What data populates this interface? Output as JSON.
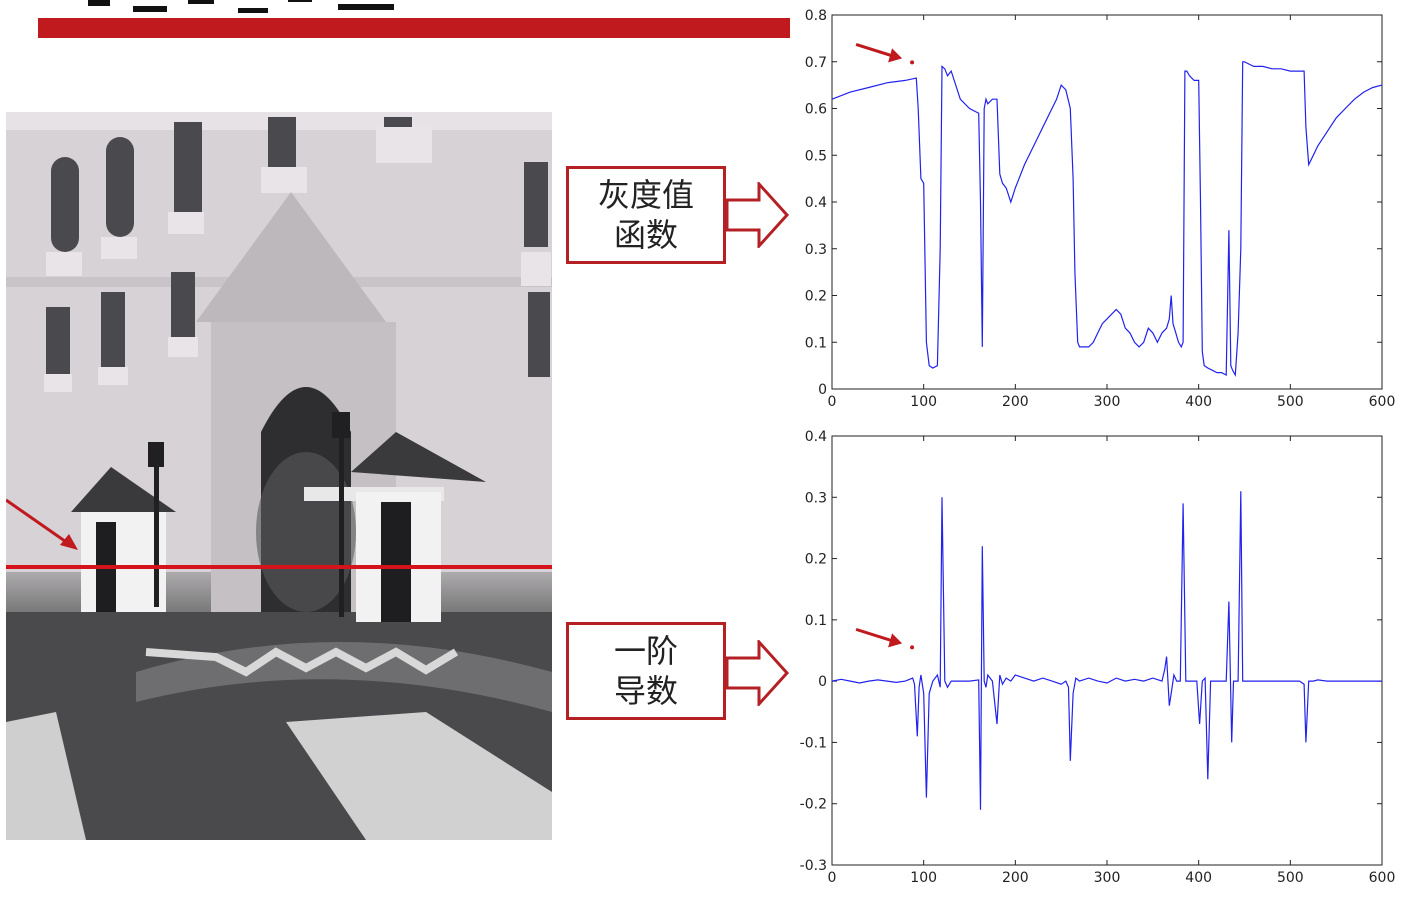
{
  "labels": {
    "gray_box": [
      "灰度值",
      "函数"
    ],
    "deriv_box": [
      "一阶",
      "导数"
    ]
  },
  "colors": {
    "accent": "#c0191e",
    "series": "#2222ee"
  },
  "chart_data": [
    {
      "type": "line",
      "title": "",
      "xlabel": "",
      "ylabel": "",
      "xlim": [
        0,
        600
      ],
      "ylim": [
        0,
        0.8
      ],
      "xticks": [
        "0",
        "100",
        "200",
        "300",
        "400",
        "500",
        "600"
      ],
      "yticks": [
        "0",
        "0.1",
        "0.2",
        "0.3",
        "0.4",
        "0.5",
        "0.6",
        "0.7",
        "0.8"
      ],
      "series": [
        {
          "x": [
            0,
            20,
            40,
            60,
            80,
            92,
            94,
            97,
            100,
            103,
            106,
            110,
            115,
            118,
            120,
            123,
            126,
            130,
            140,
            150,
            160,
            162,
            164,
            166,
            168,
            170,
            175,
            180,
            183,
            186,
            190,
            195,
            200,
            210,
            220,
            230,
            240,
            245,
            250,
            255,
            260,
            263,
            265,
            268,
            270,
            275,
            280,
            285,
            290,
            295,
            300,
            305,
            310,
            315,
            320,
            325,
            330,
            335,
            340,
            345,
            350,
            355,
            360,
            365,
            368,
            370,
            372,
            375,
            378,
            381,
            383,
            385,
            387,
            390,
            395,
            400,
            402,
            404,
            406,
            410,
            415,
            420,
            425,
            430,
            433,
            435,
            437,
            440,
            443,
            446,
            448,
            450,
            455,
            460,
            470,
            480,
            490,
            500,
            510,
            515,
            517,
            520,
            525,
            530,
            540,
            550,
            560,
            570,
            580,
            590,
            600
          ],
          "y": [
            0.62,
            0.635,
            0.645,
            0.655,
            0.66,
            0.665,
            0.6,
            0.45,
            0.44,
            0.1,
            0.05,
            0.045,
            0.05,
            0.3,
            0.69,
            0.685,
            0.67,
            0.68,
            0.62,
            0.6,
            0.59,
            0.4,
            0.09,
            0.6,
            0.62,
            0.61,
            0.62,
            0.62,
            0.46,
            0.44,
            0.43,
            0.4,
            0.43,
            0.48,
            0.52,
            0.56,
            0.6,
            0.62,
            0.65,
            0.64,
            0.6,
            0.45,
            0.25,
            0.1,
            0.09,
            0.09,
            0.09,
            0.1,
            0.12,
            0.14,
            0.15,
            0.16,
            0.17,
            0.16,
            0.13,
            0.12,
            0.1,
            0.09,
            0.1,
            0.13,
            0.12,
            0.1,
            0.12,
            0.13,
            0.15,
            0.2,
            0.14,
            0.12,
            0.1,
            0.09,
            0.1,
            0.68,
            0.68,
            0.67,
            0.66,
            0.66,
            0.4,
            0.08,
            0.05,
            0.045,
            0.04,
            0.035,
            0.035,
            0.03,
            0.34,
            0.05,
            0.04,
            0.03,
            0.12,
            0.3,
            0.7,
            0.7,
            0.695,
            0.69,
            0.69,
            0.685,
            0.685,
            0.68,
            0.68,
            0.68,
            0.56,
            0.48,
            0.5,
            0.52,
            0.55,
            0.58,
            0.6,
            0.62,
            0.635,
            0.645,
            0.65
          ]
        }
      ],
      "annotation": {
        "x": 83,
        "y": 0.705
      }
    },
    {
      "type": "line",
      "title": "",
      "xlabel": "",
      "ylabel": "",
      "xlim": [
        0,
        600
      ],
      "ylim": [
        -0.3,
        0.4
      ],
      "xticks": [
        "0",
        "100",
        "200",
        "300",
        "400",
        "500",
        "600"
      ],
      "yticks": [
        "-0.3",
        "-0.2",
        "-0.1",
        "0",
        "0.1",
        "0.2",
        "0.3",
        "0.4"
      ],
      "series": [
        {
          "x": [
            0,
            10,
            20,
            30,
            40,
            50,
            60,
            70,
            80,
            88,
            90,
            93,
            95,
            97,
            100,
            103,
            106,
            110,
            115,
            118,
            120,
            123,
            126,
            130,
            140,
            150,
            160,
            162,
            164,
            166,
            168,
            170,
            175,
            180,
            183,
            186,
            190,
            195,
            200,
            210,
            220,
            230,
            240,
            250,
            255,
            258,
            260,
            263,
            266,
            270,
            280,
            290,
            300,
            310,
            320,
            330,
            340,
            350,
            360,
            363,
            365,
            368,
            370,
            373,
            376,
            380,
            383,
            386,
            390,
            398,
            401,
            404,
            407,
            410,
            413,
            416,
            420,
            425,
            430,
            433,
            436,
            438,
            440,
            443,
            446,
            448,
            450,
            455,
            460,
            470,
            480,
            490,
            500,
            510,
            515,
            517,
            520,
            525,
            530,
            540,
            550,
            560,
            570,
            580,
            590,
            600
          ],
          "y": [
            0,
            0.003,
            0,
            -0.003,
            0,
            0.002,
            0,
            -0.002,
            0,
            0.005,
            -0.005,
            -0.09,
            -0.01,
            0.01,
            -0.02,
            -0.19,
            -0.02,
            0,
            0.01,
            -0.01,
            0.3,
            0,
            -0.01,
            0,
            0,
            0,
            0.002,
            -0.21,
            0.22,
            0,
            -0.01,
            0.01,
            0,
            -0.07,
            0.01,
            -0.005,
            0.005,
            0,
            0.01,
            0.005,
            0,
            0.005,
            0,
            -0.005,
            0,
            -0.01,
            -0.13,
            -0.02,
            0.005,
            0,
            0.005,
            0,
            -0.003,
            0.005,
            0,
            0.003,
            0,
            0.005,
            0,
            0.02,
            0.04,
            -0.04,
            -0.02,
            0.01,
            0,
            0,
            0.29,
            0,
            0,
            0,
            -0.07,
            0,
            0.005,
            -0.16,
            0,
            0,
            0,
            0,
            0,
            0.13,
            -0.1,
            0,
            0,
            0,
            0.31,
            0,
            0,
            0,
            0,
            0,
            0,
            0,
            0,
            0,
            -0.005,
            -0.1,
            0,
            0,
            0.002,
            0,
            0,
            0,
            0,
            0,
            0,
            0
          ]
        }
      ],
      "annotation": {
        "x": 83,
        "y": 0.06
      }
    }
  ]
}
